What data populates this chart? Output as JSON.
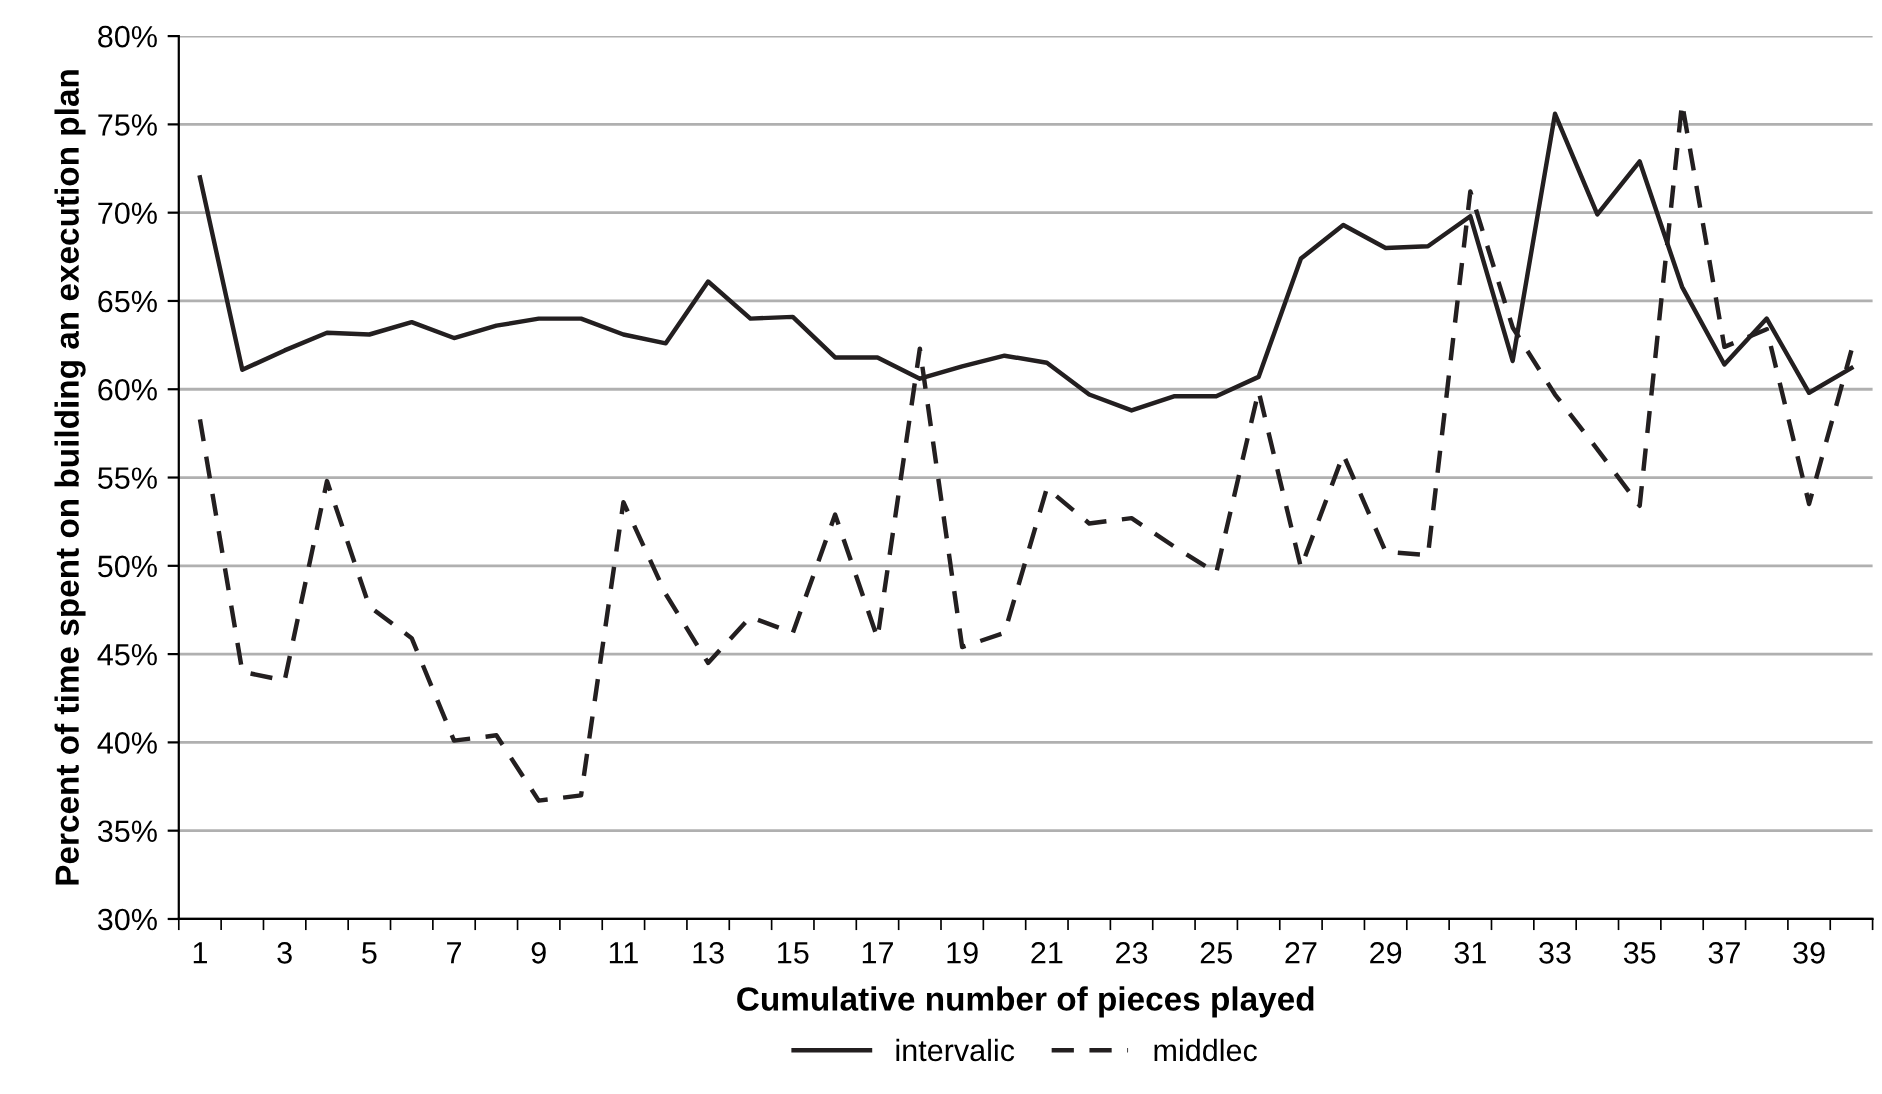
{
  "chart_data": {
    "type": "line",
    "xlabel": "Cumulative number of pieces played",
    "ylabel": "Percent of time spent on building an execution plan",
    "categories": [
      "1",
      null,
      "3",
      null,
      "5",
      null,
      "7",
      null,
      "9",
      null,
      "11",
      null,
      "13",
      null,
      "15",
      null,
      "17",
      null,
      "19",
      null,
      "21",
      null,
      "23",
      null,
      "25",
      null,
      "27",
      null,
      "29",
      null,
      "31",
      null,
      "33",
      null,
      "35",
      null,
      "37",
      null,
      "39",
      null
    ],
    "series": [
      {
        "name": "intervalic",
        "color": "#231f20",
        "line_style": "solid",
        "values": [
          72,
          61.1,
          62.2,
          63.2,
          63.1,
          63.8,
          62.9,
          63.6,
          64,
          64,
          63.1,
          62.6,
          66.1,
          64,
          64.1,
          61.8,
          61.8,
          60.6,
          61.3,
          61.9,
          61.5,
          59.7,
          58.8,
          59.6,
          59.6,
          60.7,
          67.4,
          69.3,
          68,
          68.1,
          69.8,
          61.6,
          75.6,
          69.9,
          72.9,
          65.8,
          61.4,
          64,
          59.8,
          61.2
        ]
      },
      {
        "name": "middlec",
        "color": "#231f20",
        "line_style": "dashed",
        "values": [
          58.3,
          44,
          43.5,
          54.8,
          47.7,
          45.9,
          40.1,
          40.4,
          36.7,
          37,
          53.6,
          48.4,
          44.5,
          47.1,
          46.2,
          52.9,
          45.9,
          62.3,
          45.4,
          46.2,
          54.4,
          52.4,
          52.7,
          51.1,
          49.6,
          59.9,
          49.9,
          56.3,
          50.8,
          50.6,
          71.2,
          63.5,
          59.7,
          56.6,
          53.4,
          76.2,
          62.4,
          63.4,
          53.5,
          62.2
        ]
      }
    ],
    "ylim": [
      30,
      80
    ],
    "yticks": [
      {
        "value": 30,
        "label": "30%"
      },
      {
        "value": 35,
        "label": "35%"
      },
      {
        "value": 40,
        "label": "40%"
      },
      {
        "value": 45,
        "label": "45%"
      },
      {
        "value": 50,
        "label": "50%"
      },
      {
        "value": 55,
        "label": "55%"
      },
      {
        "value": 60,
        "label": "60%"
      },
      {
        "value": 65,
        "label": "65%"
      },
      {
        "value": 70,
        "label": "70%"
      },
      {
        "value": 75,
        "label": "75%"
      },
      {
        "value": 80,
        "label": "80%"
      }
    ],
    "grid": "y",
    "legend": "bottom",
    "marker": "none"
  }
}
